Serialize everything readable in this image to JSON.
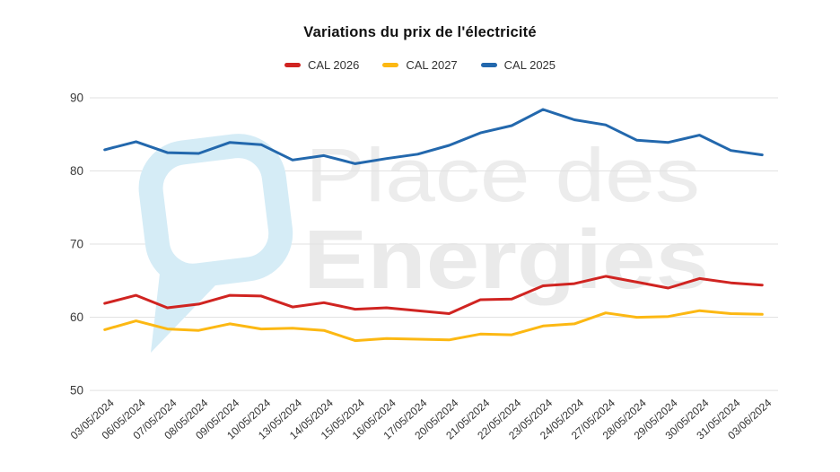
{
  "title": "Variations du prix de l'électricité",
  "watermark": {
    "line1": "Place des",
    "line2": "Energies"
  },
  "colors": {
    "cal2026_red": "#d02421",
    "cal2027_yellow": "#fcb813",
    "cal2025_blue": "#2368ad",
    "gridline": "#e2e2e2",
    "axis_text": "#3a3a3a",
    "watermark_text": "#ececec",
    "watermark_logo": "#d5ecf6"
  },
  "chart_data": {
    "type": "line",
    "categories": [
      "03/05/2024",
      "06/05/2024",
      "07/05/2024",
      "08/05/2024",
      "09/05/2024",
      "10/05/2024",
      "13/05/2024",
      "14/05/2024",
      "15/05/2024",
      "16/05/2024",
      "17/05/2024",
      "20/05/2024",
      "21/05/2024",
      "22/05/2024",
      "23/05/2024",
      "24/05/2024",
      "27/05/2024",
      "28/05/2024",
      "29/05/2024",
      "30/05/2024",
      "31/05/2024",
      "03/06/2024"
    ],
    "series": [
      {
        "name": "CAL 2026",
        "color": "#d02421",
        "values": [
          61.9,
          63.0,
          61.3,
          61.8,
          63.0,
          62.9,
          61.4,
          62.0,
          61.1,
          61.3,
          60.9,
          60.5,
          62.4,
          62.5,
          64.3,
          64.6,
          65.6,
          64.8,
          64.0,
          65.3,
          64.7,
          64.4
        ]
      },
      {
        "name": "CAL 2027",
        "color": "#fcb813",
        "values": [
          58.3,
          59.5,
          58.4,
          58.2,
          59.1,
          58.4,
          58.5,
          58.2,
          56.8,
          57.1,
          57.0,
          56.9,
          57.7,
          57.6,
          58.8,
          59.1,
          60.6,
          60.0,
          60.1,
          60.9,
          60.5,
          60.4
        ]
      },
      {
        "name": "CAL 2025",
        "color": "#2368ad",
        "values": [
          82.9,
          84.0,
          82.5,
          82.4,
          83.9,
          83.6,
          81.5,
          82.1,
          81.0,
          81.7,
          82.3,
          83.5,
          85.2,
          86.2,
          88.4,
          87.0,
          86.3,
          84.2,
          83.9,
          84.9,
          82.8,
          82.2
        ]
      }
    ],
    "ylim": [
      50,
      90
    ],
    "yticks": [
      50,
      60,
      70,
      80,
      90
    ],
    "grid": true,
    "legend_position": "top",
    "x_label_rotation_deg": -42
  }
}
